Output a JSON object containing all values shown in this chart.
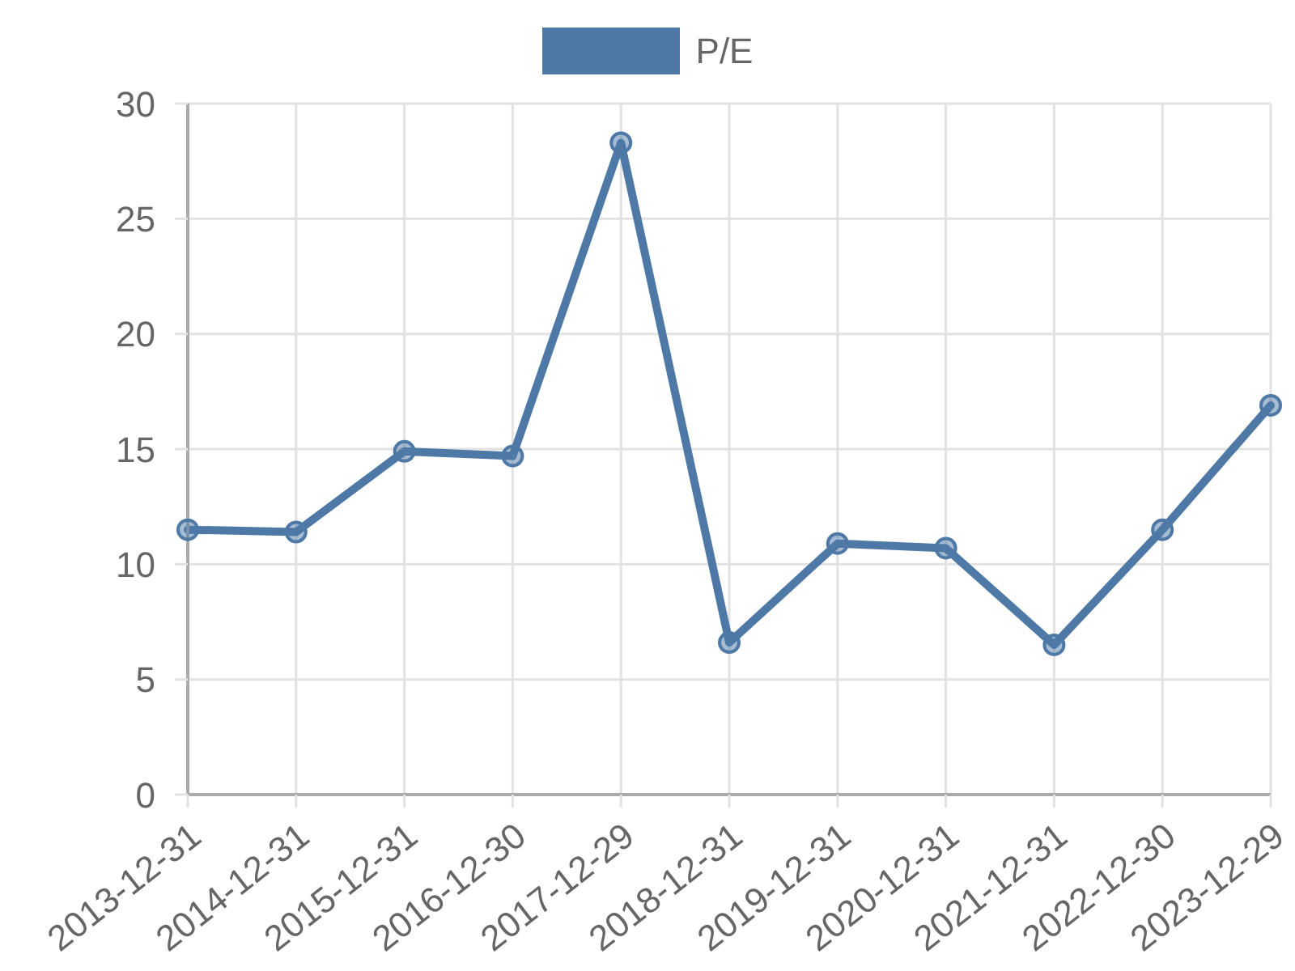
{
  "chart_data": {
    "type": "line",
    "categories": [
      "2013-12-31",
      "2014-12-31",
      "2015-12-31",
      "2016-12-30",
      "2017-12-29",
      "2018-12-31",
      "2019-12-31",
      "2020-12-31",
      "2021-12-31",
      "2022-12-30",
      "2023-12-29"
    ],
    "series": [
      {
        "name": "P/E",
        "color": "#4e79a7",
        "values": [
          11.5,
          11.4,
          14.9,
          14.7,
          28.3,
          6.6,
          10.9,
          10.7,
          6.5,
          11.5,
          16.9
        ]
      }
    ],
    "ylim": [
      0,
      30
    ],
    "yticks": [
      0,
      5,
      10,
      15,
      20,
      25,
      30
    ],
    "grid": true,
    "legend": "top",
    "marker": "circle",
    "line_style": "solid"
  }
}
